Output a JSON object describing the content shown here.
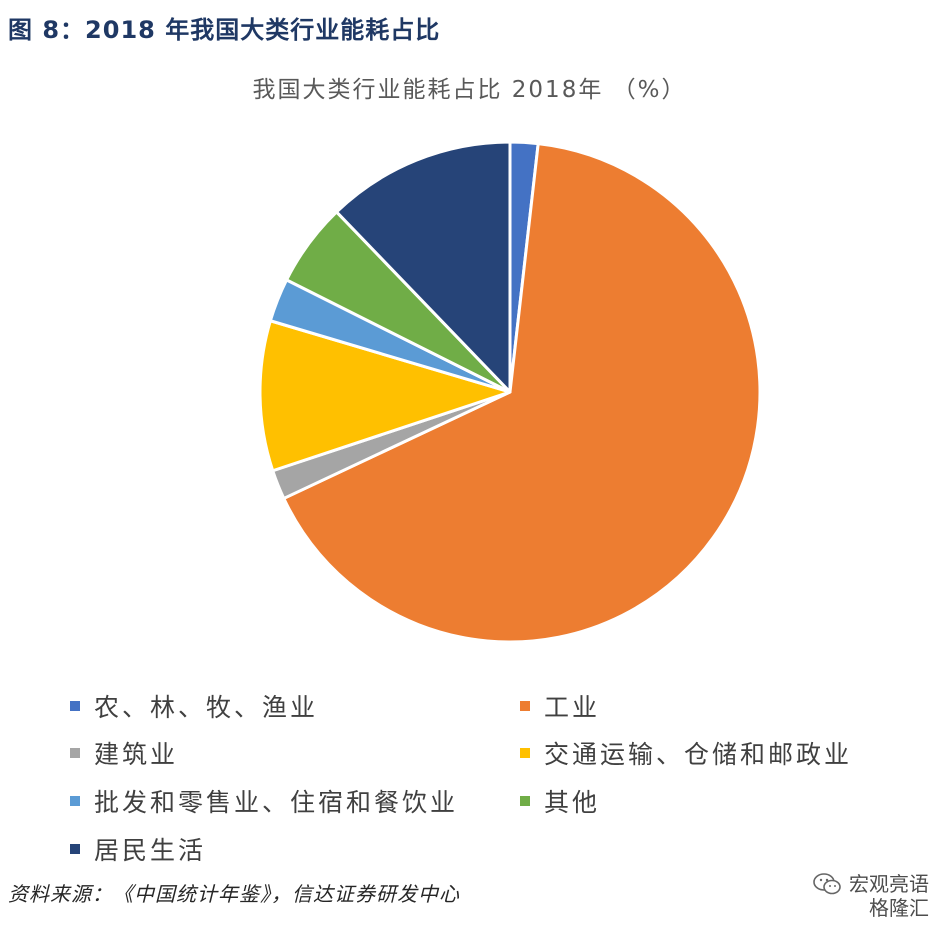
{
  "figure_title": "图 8：2018 年我国大类行业能耗占比",
  "source_text": "资料来源：《中国统计年鉴》，信达证券研发中心",
  "watermark": {
    "line1": "宏观亮语",
    "line2": "格隆汇",
    "icon": "wechat-icon"
  },
  "chart_data": {
    "type": "pie",
    "title": "我国大类行业能耗占比 2018年 （%）",
    "categories": [
      "农、林、牧、渔业",
      "工业",
      "建筑业",
      "交通运输、仓储和邮政业",
      "批发和零售业、住宿和餐饮业",
      "其他",
      "居民生活"
    ],
    "values": [
      1.8,
      66.2,
      1.9,
      9.7,
      2.8,
      5.4,
      12.2
    ],
    "colors": [
      "#4472c4",
      "#ed7d31",
      "#a5a5a5",
      "#ffc000",
      "#5b9bd5",
      "#70ad47",
      "#264478"
    ],
    "start": "12 o'clock",
    "direction": "clockwise",
    "legend": "bottom"
  }
}
